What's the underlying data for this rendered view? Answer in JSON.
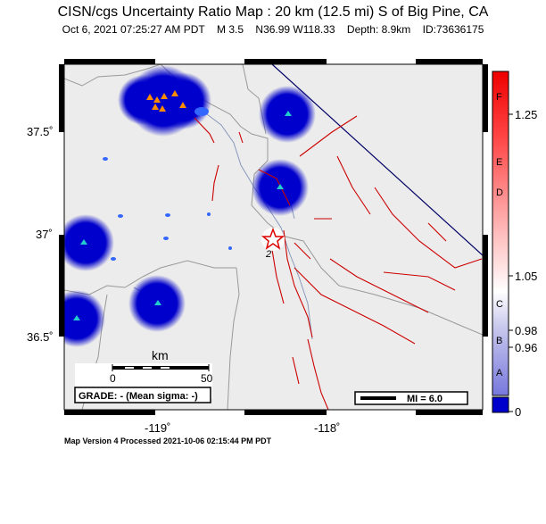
{
  "header": {
    "title": "CISN/cgs Uncertainty Ratio Map : 20 km (12.5 mi) S of Big Pine, CA",
    "date": "Oct  6, 2021 07:25:27 AM PDT",
    "magnitude": "M 3.5",
    "location": "N36.99 W118.33",
    "depth": "Depth: 8.9km",
    "event_id": "ID:73636175"
  },
  "map": {
    "y_ticks": [
      "37.5˚",
      "37˚",
      "36.5˚"
    ],
    "x_ticks": [
      "-119˚",
      "-118˚"
    ],
    "scale_bar": {
      "label": "km",
      "ticks": [
        "0",
        "50"
      ]
    },
    "grade_label": "GRADE: - (Mean sigma: -)",
    "mi_legend": "MI = 6.0",
    "epicenter_label": "2",
    "colors": {
      "background": "#ececec",
      "uncertainty_blob": "#0000cc",
      "fault": "#cc0000",
      "station": "#22cccc",
      "station_orange": "#ff8c00",
      "water": "#3366ff",
      "border": "#000066"
    }
  },
  "colorbar": {
    "letters": [
      "F",
      "E",
      "D",
      "C",
      "B",
      "A"
    ],
    "values": [
      "1.25",
      "1.05",
      "0.98",
      "0.96",
      "0"
    ]
  },
  "footer": {
    "text": "Map Version 4 Processed 2021-10-06 02:15:44 PM PDT"
  }
}
